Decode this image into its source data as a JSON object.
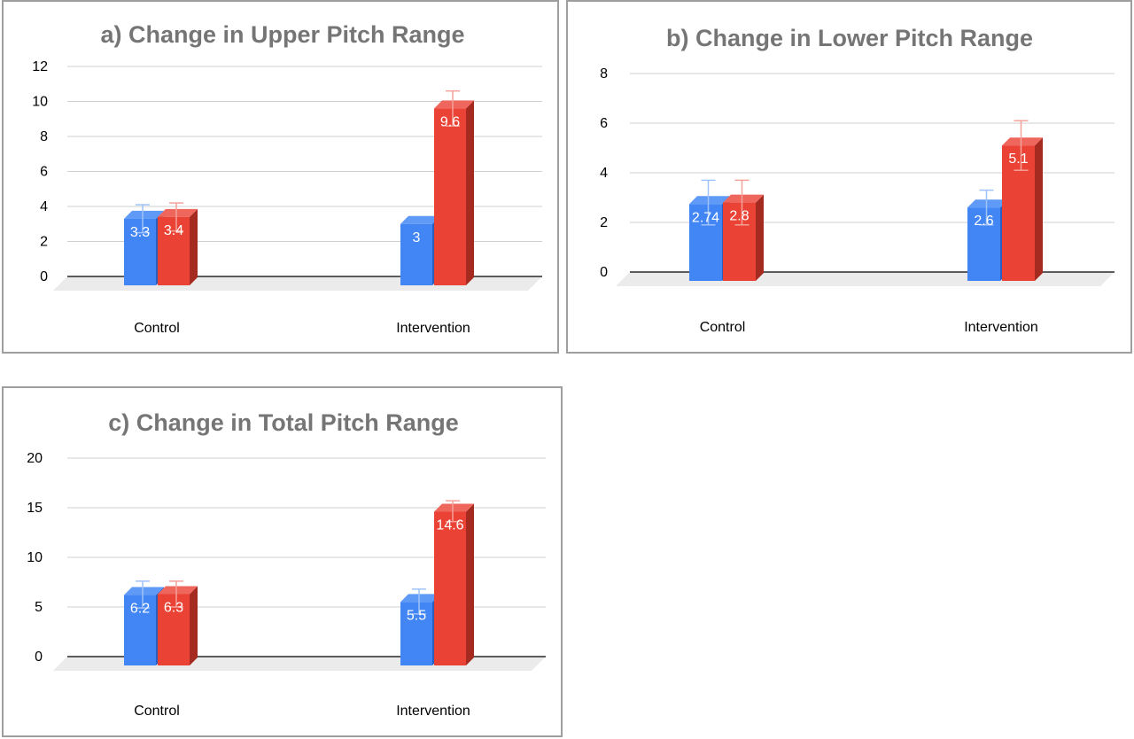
{
  "colors": {
    "series1": "#4285f4",
    "series1_side": "#2a5fbf",
    "series1_top": "#5f9af6",
    "series2": "#ea4335",
    "series2_side": "#a52a20",
    "series2_top": "#ef675c",
    "grid": "#cfcfcf",
    "floor": "#ebebeb",
    "err1": "#9fc2f9",
    "err2": "#f4a19a"
  },
  "chart_data": [
    {
      "id": "a",
      "type": "bar",
      "title": "a) Change in Upper Pitch Range",
      "categories": [
        "Control",
        "Intervention"
      ],
      "series": [
        {
          "values": [
            3.3,
            3
          ],
          "labels": [
            "3.3",
            "3"
          ],
          "error_low": [
            2.5,
            3
          ],
          "error_high": [
            4.1,
            3
          ]
        },
        {
          "values": [
            3.4,
            9.6
          ],
          "labels": [
            "3.4",
            "9.6"
          ],
          "error_low": [
            2.6,
            8.6
          ],
          "error_high": [
            4.2,
            10.6
          ]
        }
      ],
      "yticks": [
        "0",
        "2",
        "4",
        "6",
        "8",
        "10",
        "12"
      ],
      "ylim": [
        0,
        12
      ],
      "grid": true
    },
    {
      "id": "b",
      "type": "bar",
      "title": "b) Change in Lower Pitch Range",
      "categories": [
        "Control",
        "Intervention"
      ],
      "series": [
        {
          "values": [
            2.74,
            2.6
          ],
          "labels": [
            "2.74",
            "2.6"
          ],
          "error_low": [
            1.9,
            1.9
          ],
          "error_high": [
            3.7,
            3.3
          ]
        },
        {
          "values": [
            2.8,
            5.1
          ],
          "labels": [
            "2.8",
            "5.1"
          ],
          "error_low": [
            1.9,
            4.1
          ],
          "error_high": [
            3.7,
            6.1
          ]
        }
      ],
      "yticks": [
        "0",
        "2",
        "4",
        "6",
        "8"
      ],
      "ylim": [
        0,
        8
      ],
      "grid": true
    },
    {
      "id": "c",
      "type": "bar",
      "title": "c) Change in Total Pitch Range",
      "categories": [
        "Control",
        "Intervention"
      ],
      "series": [
        {
          "values": [
            6.2,
            5.5
          ],
          "labels": [
            "6.2",
            "5.5"
          ],
          "error_low": [
            4.9,
            4.3
          ],
          "error_high": [
            7.6,
            6.8
          ]
        },
        {
          "values": [
            6.3,
            14.6
          ],
          "labels": [
            "6.3",
            "14.6"
          ],
          "error_low": [
            5.0,
            13.6
          ],
          "error_high": [
            7.6,
            15.7
          ]
        }
      ],
      "yticks": [
        "0",
        "5",
        "10",
        "15",
        "20"
      ],
      "ylim": [
        0,
        20
      ],
      "grid": true
    }
  ]
}
